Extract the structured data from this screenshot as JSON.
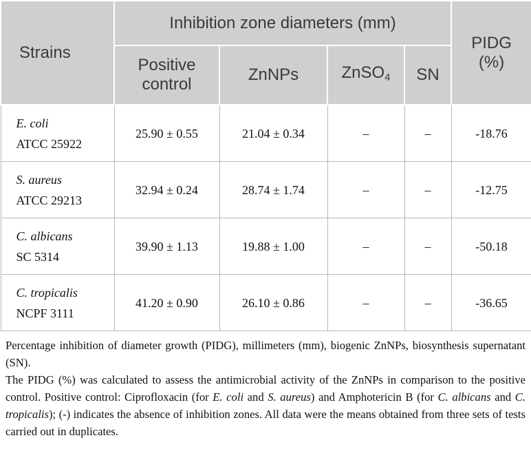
{
  "table": {
    "header": {
      "strains": "Strains",
      "group": "Inhibition zone diameters (mm)",
      "pidg": [
        "PIDG",
        "(%)"
      ],
      "columns": [
        {
          "text": "Positive control"
        },
        {
          "text": "ZnNPs"
        },
        {
          "text": "ZnSO",
          "sub": "4"
        },
        {
          "text": "SN"
        }
      ]
    },
    "rows": [
      {
        "species": "E. coli",
        "strain": "ATCC 25922",
        "cells": [
          "25.90 ± 0.55",
          "21.04 ± 0.34",
          "–",
          "–",
          "-18.76"
        ]
      },
      {
        "species": "S. aureus",
        "strain": "ATCC 29213",
        "cells": [
          "32.94 ± 0.24",
          "28.74 ± 1.74",
          "–",
          "–",
          "-12.75"
        ]
      },
      {
        "species": "C. albicans",
        "strain": "SC 5314",
        "cells": [
          "39.90 ± 1.13",
          "19.88 ± 1.00",
          "–",
          "–",
          "-50.18"
        ]
      },
      {
        "species": "C. tropicalis",
        "strain": "NCPF 3111",
        "cells": [
          "41.20 ± 0.90",
          "26.10 ± 0.86",
          "–",
          "–",
          "-36.65"
        ]
      }
    ]
  },
  "footnotes": [
    [
      {
        "text": "Percentage inhibition of diameter growth (PIDG), millimeters (mm), biogenic ZnNPs, biosynthesis supernatant (SN).",
        "italic": false
      }
    ],
    [
      {
        "text": "The PIDG (%) was calculated to assess the antimicrobial activity of the ZnNPs in comparison to the positive control. Positive control: Ciprofloxacin (for ",
        "italic": false
      },
      {
        "text": "E. coli",
        "italic": true
      },
      {
        "text": " and ",
        "italic": false
      },
      {
        "text": "S. aureus",
        "italic": true
      },
      {
        "text": ") and Amphotericin B (for ",
        "italic": false
      },
      {
        "text": "C. albicans",
        "italic": true
      },
      {
        "text": " and ",
        "italic": false
      },
      {
        "text": "C. tropicalis",
        "italic": true
      },
      {
        "text": "); (-) indicates the absence of inhibition zones. All data were the means obtained from three sets of tests carried out in duplicates.",
        "italic": false
      }
    ]
  ]
}
